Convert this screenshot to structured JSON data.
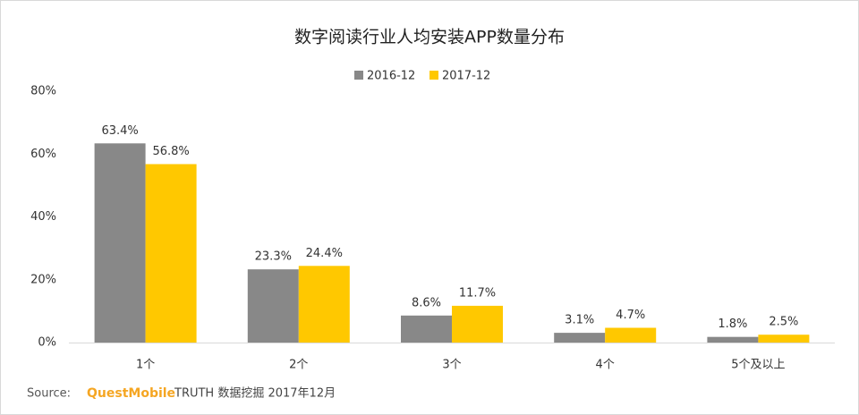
{
  "chart_data": {
    "type": "bar",
    "title": "数字阅读行业人均安装APP数量分布",
    "categories": [
      "1个",
      "2个",
      "3个",
      "4个",
      "5个及以上"
    ],
    "series": [
      {
        "name": "2016-12",
        "color": "#888888",
        "values": [
          63.4,
          23.3,
          8.6,
          3.1,
          1.8
        ],
        "value_labels": [
          "63.4%",
          "23.3%",
          "8.6%",
          "3.1%",
          "1.8%"
        ]
      },
      {
        "name": "2017-12",
        "color": "#ffc800",
        "values": [
          56.8,
          24.4,
          11.7,
          4.7,
          2.5
        ],
        "value_labels": [
          "56.8%",
          "24.4%",
          "11.7%",
          "4.7%",
          "2.5%"
        ]
      }
    ],
    "ylim": [
      0,
      80
    ],
    "yticks": [
      {
        "value": 0,
        "label": "0%"
      },
      {
        "value": 20,
        "label": "20%"
      },
      {
        "value": 40,
        "label": "40%"
      },
      {
        "value": 60,
        "label": "60%"
      },
      {
        "value": 80,
        "label": "80%"
      }
    ],
    "grid": false,
    "legend_position": "top",
    "source_label": "Source:",
    "source_brand": "QuestMobile",
    "source_text": "TRUTH 数据挖掘 2017年12月"
  }
}
